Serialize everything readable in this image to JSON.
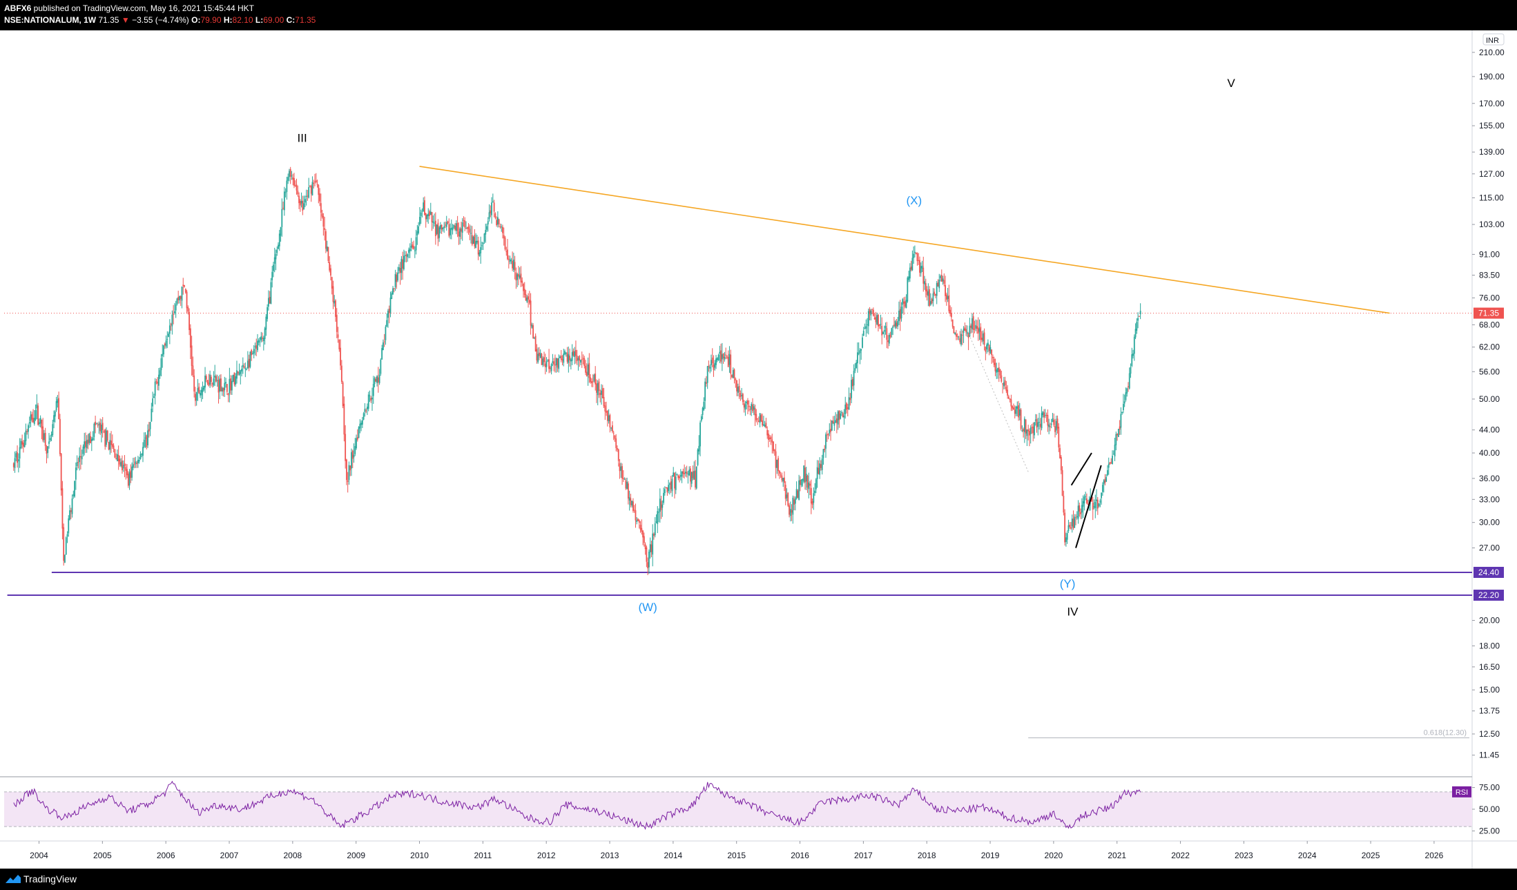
{
  "header": {
    "publisher": "ABFX6",
    "published_text": " published on TradingView.com, May 16, 2021 15:45:44 HKT",
    "symbol": "NSE:NATIONALUM, 1W",
    "last": "71.35",
    "change_arrow": "▼",
    "change": "−3.55 (−4.74%)",
    "o_label": "O:",
    "o_value": "79.90",
    "h_label": "H:",
    "h_value": "82.10",
    "l_label": "L:",
    "l_value": "69.00",
    "c_label": "C:",
    "c_value": "71.35"
  },
  "footer": {
    "brand": "TradingView",
    "logo_icon": "tradingview-logo-icon"
  },
  "colors": {
    "up": "#26a69a",
    "down": "#ef5350",
    "trendline": "#f5a623",
    "support": "#5e35b1",
    "wave_blue": "#2196f3",
    "rsi_line": "#7b1fa2",
    "rsi_band": "#f3e5f5"
  },
  "chart_data": [
    {
      "type": "candlestick",
      "title": "",
      "currency_label": "INR",
      "log_scale": true,
      "ylim": [
        10.5,
        230
      ],
      "y_ticks": [
        "210.00",
        "190.00",
        "170.00",
        "155.00",
        "139.00",
        "127.00",
        "115.00",
        "103.00",
        "91.00",
        "83.50",
        "76.00",
        "68.00",
        "62.00",
        "56.00",
        "50.00",
        "44.00",
        "40.00",
        "36.00",
        "33.00",
        "30.00",
        "27.00",
        "20.00",
        "18.00",
        "16.50",
        "15.00",
        "13.75",
        "12.50",
        "11.45"
      ],
      "x_ticks": [
        "2004",
        "2005",
        "2006",
        "2007",
        "2008",
        "2009",
        "2010",
        "2011",
        "2012",
        "2013",
        "2014",
        "2015",
        "2016",
        "2017",
        "2018",
        "2019",
        "2020",
        "2021",
        "2022",
        "2023",
        "2024",
        "2025",
        "2026"
      ],
      "anchor_points": [
        [
          2003.6,
          38
        ],
        [
          2003.95,
          48
        ],
        [
          2004.15,
          40
        ],
        [
          2004.3,
          50
        ],
        [
          2004.38,
          25
        ],
        [
          2004.6,
          38
        ],
        [
          2004.9,
          45
        ],
        [
          2005.2,
          40
        ],
        [
          2005.4,
          36
        ],
        [
          2005.7,
          42
        ],
        [
          2006.1,
          72
        ],
        [
          2006.3,
          80
        ],
        [
          2006.45,
          50
        ],
        [
          2006.7,
          55
        ],
        [
          2006.95,
          52
        ],
        [
          2007.3,
          58
        ],
        [
          2007.55,
          65
        ],
        [
          2007.8,
          100
        ],
        [
          2007.95,
          130
        ],
        [
          2008.15,
          110
        ],
        [
          2008.35,
          125
        ],
        [
          2008.55,
          90
        ],
        [
          2008.75,
          60
        ],
        [
          2008.85,
          35
        ],
        [
          2009.05,
          45
        ],
        [
          2009.35,
          55
        ],
        [
          2009.65,
          85
        ],
        [
          2009.95,
          95
        ],
        [
          2010.05,
          110
        ],
        [
          2010.3,
          100
        ],
        [
          2010.7,
          102
        ],
        [
          2010.95,
          92
        ],
        [
          2011.15,
          112
        ],
        [
          2011.35,
          95
        ],
        [
          2011.7,
          75
        ],
        [
          2011.85,
          60
        ],
        [
          2012.05,
          58
        ],
        [
          2012.4,
          60
        ],
        [
          2012.65,
          56
        ],
        [
          2012.95,
          48
        ],
        [
          2013.2,
          36
        ],
        [
          2013.45,
          30
        ],
        [
          2013.6,
          25.5
        ],
        [
          2013.85,
          34
        ],
        [
          2014.15,
          37
        ],
        [
          2014.35,
          36
        ],
        [
          2014.55,
          58
        ],
        [
          2014.85,
          60
        ],
        [
          2015.05,
          50
        ],
        [
          2015.4,
          46
        ],
        [
          2015.65,
          38
        ],
        [
          2015.85,
          31
        ],
        [
          2016.05,
          37
        ],
        [
          2016.2,
          33
        ],
        [
          2016.45,
          44
        ],
        [
          2016.75,
          48
        ],
        [
          2016.95,
          62
        ],
        [
          2017.1,
          72
        ],
        [
          2017.4,
          64
        ],
        [
          2017.65,
          74
        ],
        [
          2017.8,
          93
        ],
        [
          2018.05,
          75
        ],
        [
          2018.25,
          82
        ],
        [
          2018.45,
          64
        ],
        [
          2018.75,
          68
        ],
        [
          2018.95,
          62
        ],
        [
          2019.15,
          55
        ],
        [
          2019.4,
          48
        ],
        [
          2019.6,
          43
        ],
        [
          2019.8,
          46
        ],
        [
          2020.05,
          45
        ],
        [
          2020.18,
          28
        ],
        [
          2020.3,
          30
        ],
        [
          2020.5,
          33
        ],
        [
          2020.7,
          32
        ],
        [
          2020.95,
          40
        ],
        [
          2021.1,
          48
        ],
        [
          2021.25,
          60
        ],
        [
          2021.33,
          70
        ],
        [
          2021.37,
          71.35
        ]
      ],
      "price_labels": [
        {
          "value": 71.35,
          "text": "71.35",
          "bg": "#ef5350",
          "line": "dotted"
        },
        {
          "value": 24.4,
          "text": "24.40",
          "bg": "#5e35b1",
          "line": "solid"
        },
        {
          "value": 22.2,
          "text": "22.20",
          "bg": "#5e35b1",
          "line": "solid"
        }
      ],
      "trendline": {
        "from": [
          2010.0,
          131
        ],
        "to": [
          2025.3,
          71.35
        ]
      },
      "support_lines": [
        {
          "value": 24.4,
          "x_start": 2004.2,
          "x_end": 2027.0
        },
        {
          "value": 22.2,
          "x_start": 2003.5,
          "x_end": 2027.0
        }
      ],
      "wave_labels": [
        {
          "text": "III",
          "x": 2008.15,
          "y": 145,
          "color": "#000000"
        },
        {
          "text": "(X)",
          "x": 2017.8,
          "y": 112,
          "color": "#2196f3"
        },
        {
          "text": "V",
          "x": 2022.8,
          "y": 182,
          "color": "#000000"
        },
        {
          "text": "(W)",
          "x": 2013.6,
          "y": 20.8,
          "color": "#2196f3"
        },
        {
          "text": "(Y)",
          "x": 2020.22,
          "y": 22.9,
          "color": "#2196f3"
        },
        {
          "text": "IV",
          "x": 2020.3,
          "y": 20.4,
          "color": "#000000"
        }
      ],
      "black_lines": [
        {
          "from": [
            2020.28,
            35
          ],
          "to": [
            2020.6,
            40
          ]
        },
        {
          "from": [
            2020.35,
            27
          ],
          "to": [
            2020.75,
            38
          ]
        }
      ],
      "dotted_line": {
        "from": [
          2018.6,
          68
        ],
        "to": [
          2019.6,
          37
        ],
        "color": "#bdbdbd"
      },
      "fib_label": {
        "text": "0.618(12.30)",
        "value": 12.3,
        "x_start": 2019.6
      }
    },
    {
      "type": "line",
      "title": "",
      "legend": "RSI",
      "ylim": [
        15,
        85
      ],
      "y_ticks": [
        "75.00",
        "50.00",
        "25.00"
      ],
      "bands": [
        30,
        70
      ],
      "anchor_points": [
        [
          2003.6,
          55
        ],
        [
          2003.9,
          72
        ],
        [
          2004.1,
          52
        ],
        [
          2004.4,
          40
        ],
        [
          2004.8,
          55
        ],
        [
          2005.1,
          65
        ],
        [
          2005.4,
          48
        ],
        [
          2005.7,
          55
        ],
        [
          2006.0,
          70
        ],
        [
          2006.1,
          80
        ],
        [
          2006.5,
          46
        ],
        [
          2006.8,
          55
        ],
        [
          2007.2,
          50
        ],
        [
          2007.6,
          63
        ],
        [
          2007.95,
          72
        ],
        [
          2008.3,
          62
        ],
        [
          2008.75,
          30
        ],
        [
          2009.2,
          48
        ],
        [
          2009.6,
          66
        ],
        [
          2009.95,
          68
        ],
        [
          2010.3,
          60
        ],
        [
          2010.9,
          52
        ],
        [
          2011.2,
          62
        ],
        [
          2011.7,
          40
        ],
        [
          2012.05,
          35
        ],
        [
          2012.3,
          55
        ],
        [
          2012.8,
          48
        ],
        [
          2013.3,
          36
        ],
        [
          2013.6,
          30
        ],
        [
          2013.95,
          44
        ],
        [
          2014.3,
          54
        ],
        [
          2014.55,
          78
        ],
        [
          2014.85,
          66
        ],
        [
          2015.2,
          55
        ],
        [
          2015.6,
          42
        ],
        [
          2016.0,
          34
        ],
        [
          2016.35,
          58
        ],
        [
          2016.8,
          62
        ],
        [
          2017.1,
          66
        ],
        [
          2017.55,
          55
        ],
        [
          2017.8,
          72
        ],
        [
          2018.15,
          50
        ],
        [
          2018.45,
          48
        ],
        [
          2018.9,
          52
        ],
        [
          2019.3,
          40
        ],
        [
          2019.7,
          35
        ],
        [
          2020.0,
          46
        ],
        [
          2020.2,
          28
        ],
        [
          2020.5,
          44
        ],
        [
          2020.9,
          52
        ],
        [
          2021.1,
          68
        ],
        [
          2021.3,
          70
        ],
        [
          2021.37,
          71
        ]
      ]
    }
  ]
}
